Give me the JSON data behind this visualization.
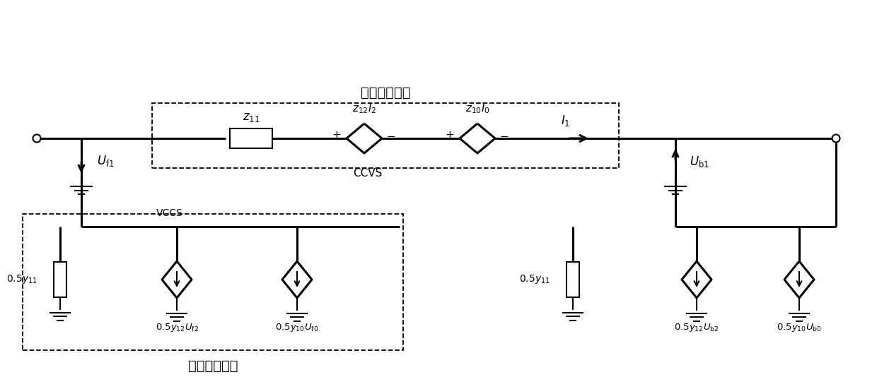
{
  "title_series": "串联补偿电路",
  "title_parallel": "并联补偿电路",
  "bg_color": "#ffffff",
  "line_color": "#000000",
  "lw": 1.5,
  "lw2": 2.2,
  "fig_width": 12.4,
  "fig_height": 5.51,
  "xmax": 12.4,
  "ymax": 5.51
}
